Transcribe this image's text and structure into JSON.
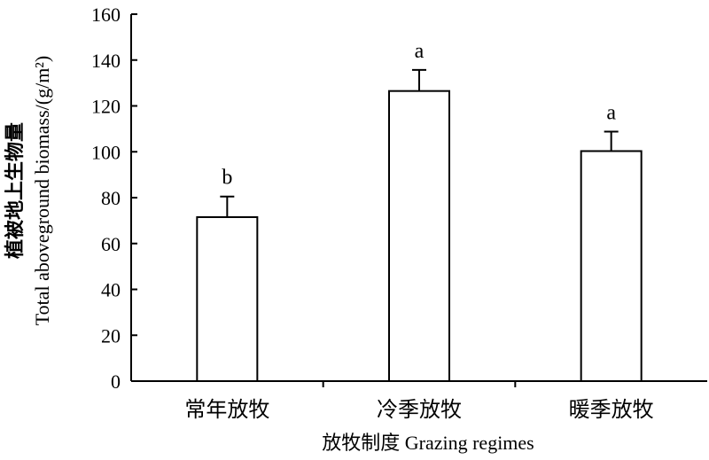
{
  "chart_data": {
    "type": "bar",
    "categories": [
      "常年放牧",
      "冷季放牧",
      "暖季放牧"
    ],
    "values": [
      71.5,
      126.5,
      100.3
    ],
    "error_upper": [
      80.5,
      135.7,
      108.8
    ],
    "significance": [
      "b",
      "a",
      "a"
    ],
    "yticks": [
      "0",
      "20",
      "40",
      "60",
      "80",
      "100",
      "120",
      "140",
      "160"
    ],
    "ylim": [
      0,
      160
    ],
    "xlabel": "放牧制度 Grazing regimes",
    "ylabel_line1": "植被地上生物量",
    "ylabel_line2": "Total aboveground biomass/(g/m²)",
    "grid": false,
    "bar_fill": "#ffffff",
    "bar_stroke": "#000000"
  }
}
